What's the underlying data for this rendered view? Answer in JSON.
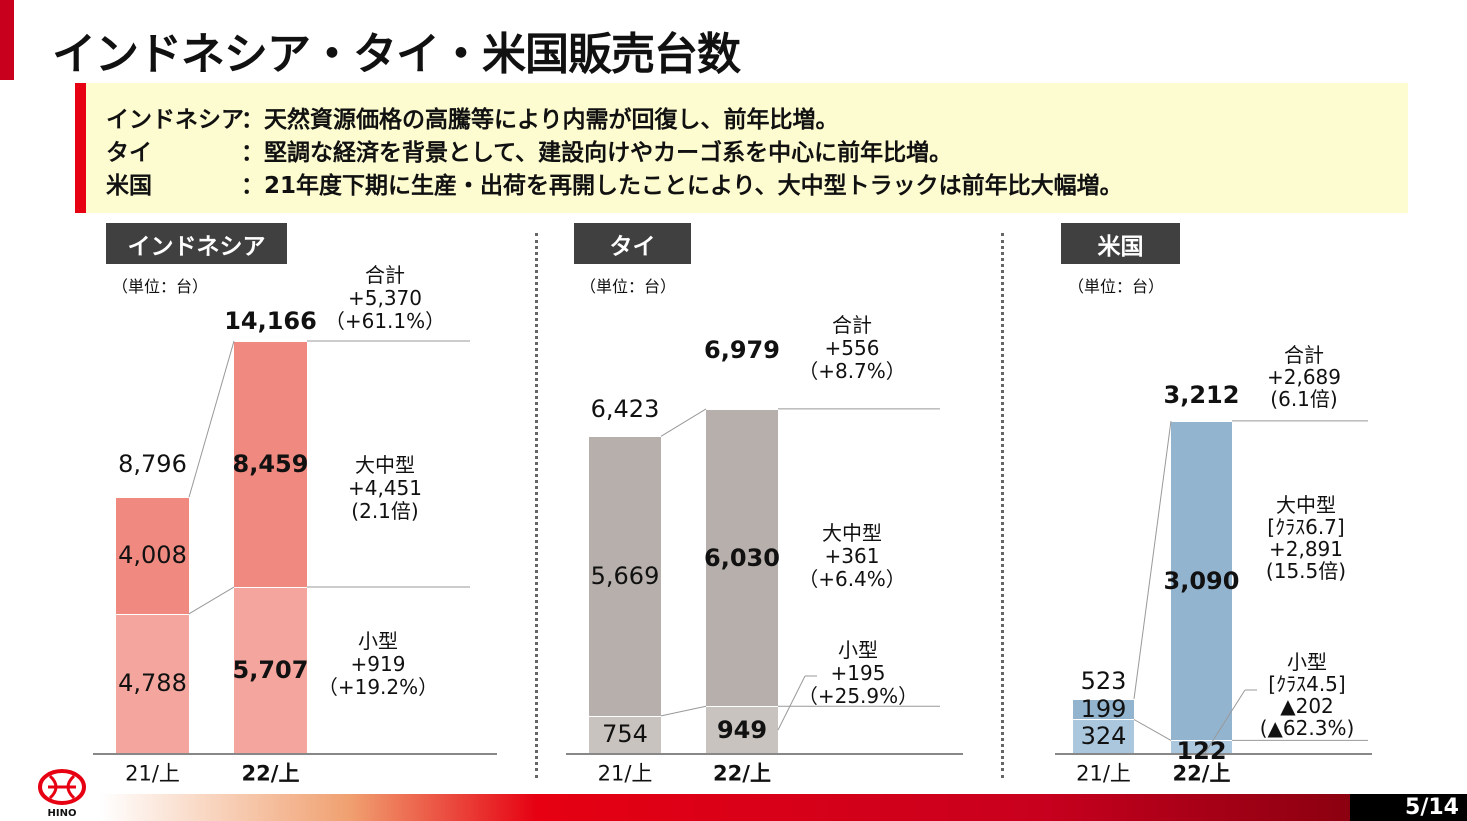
{
  "title": "インドネシア・タイ・米国販売台数",
  "summary": [
    {
      "name": "インドネシア",
      "text": "：天然資源価格の高騰等により内需が回復し、前年比増。"
    },
    {
      "name": "タイ",
      "text": "：堅調な経済を背景として、建設向けやカーゴ系を中心に前年比増。"
    },
    {
      "name": "米国",
      "text": "：21年度下期に生産・出荷を再開したことにより、大中型トラックは前年比大幅増。"
    }
  ],
  "footer": {
    "page": "5/14",
    "logo_text": "HINO"
  },
  "colors": {
    "indonesia_large": "#f08a80",
    "indonesia_small": "#f4a69e",
    "thai_large": "#b6afab",
    "thai_small": "#c9c3bf",
    "us_large": "#93b4cf",
    "us_small": "#abc7de"
  },
  "chart_data": [
    {
      "type": "bar",
      "stacked": true,
      "title": "インドネシア",
      "unit": "（単位：台）",
      "categories": [
        "21/上",
        "22/上"
      ],
      "series": [
        {
          "name": "小型",
          "values": [
            4788,
            5707
          ]
        },
        {
          "name": "大中型",
          "values": [
            4008,
            8459
          ]
        }
      ],
      "totals": [
        8796,
        14166
      ],
      "annotations": {
        "total": [
          "合計",
          "+5,370",
          "（+61.1%）"
        ],
        "large": [
          "大中型",
          "+4,451",
          "(2.1倍)"
        ],
        "small": [
          "小型",
          "+919",
          "（+19.2%）"
        ]
      }
    },
    {
      "type": "bar",
      "stacked": true,
      "title": "タイ",
      "unit": "（単位：台）",
      "categories": [
        "21/上",
        "22/上"
      ],
      "series": [
        {
          "name": "小型",
          "values": [
            754,
            949
          ]
        },
        {
          "name": "大中型",
          "values": [
            5669,
            6030
          ]
        }
      ],
      "totals": [
        6423,
        6979
      ],
      "annotations": {
        "total": [
          "合計",
          "+556",
          "（+8.7%）"
        ],
        "large": [
          "大中型",
          "+361",
          "（+6.4%）"
        ],
        "small": [
          "小型",
          "+195",
          "（+25.9%）"
        ]
      }
    },
    {
      "type": "bar",
      "stacked": true,
      "title": "米国",
      "unit": "（単位：台）",
      "categories": [
        "21/上",
        "22/上"
      ],
      "series": [
        {
          "name": "小型",
          "values": [
            324,
            122
          ]
        },
        {
          "name": "大中型",
          "values": [
            199,
            3090
          ]
        }
      ],
      "totals": [
        523,
        3212
      ],
      "annotations": {
        "total": [
          "合計",
          "+2,689",
          "(6.1倍)"
        ],
        "large": [
          "大中型",
          "[ｸﾗｽ6.7]",
          "+2,891",
          "(15.5倍)"
        ],
        "small": [
          "小型",
          "[ｸﾗｽ4.5]",
          "▲202",
          "(▲62.3%)"
        ]
      }
    }
  ]
}
